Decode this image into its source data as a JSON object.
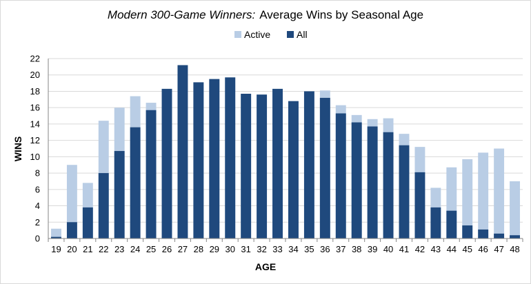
{
  "chart_data": {
    "type": "bar",
    "title_italic": "Modern 300-Game Winners:",
    "title_rest": "Average Wins by Seasonal Age",
    "xlabel": "AGE",
    "ylabel": "WINS",
    "ylim": [
      0,
      22
    ],
    "yticks": [
      0,
      2,
      4,
      6,
      8,
      10,
      12,
      14,
      16,
      18,
      20,
      22
    ],
    "grid": true,
    "legend_position": "top",
    "stacked": true,
    "categories": [
      "19",
      "20",
      "21",
      "22",
      "23",
      "24",
      "25",
      "26",
      "27",
      "28",
      "29",
      "30",
      "31",
      "32",
      "33",
      "34",
      "35",
      "36",
      "37",
      "38",
      "39",
      "40",
      "41",
      "42",
      "43",
      "44",
      "45",
      "46",
      "47",
      "48"
    ],
    "series": [
      {
        "name": "All",
        "color": "#1f497d",
        "values": [
          0.2,
          2.0,
          3.8,
          8.0,
          10.7,
          13.6,
          15.7,
          18.3,
          21.2,
          19.1,
          19.5,
          19.7,
          17.7,
          17.6,
          18.3,
          16.8,
          18.0,
          17.2,
          15.3,
          14.2,
          13.7,
          13.0,
          11.4,
          8.1,
          3.8,
          3.4,
          1.6,
          1.1,
          0.6,
          0.4
        ]
      },
      {
        "name": "Active",
        "color": "#b9cde5",
        "values": [
          1.2,
          9.0,
          6.8,
          14.4,
          16.0,
          17.4,
          16.6,
          18.3,
          21.2,
          19.1,
          19.5,
          19.7,
          17.7,
          17.6,
          18.3,
          16.8,
          18.0,
          18.1,
          16.3,
          15.1,
          14.6,
          14.7,
          12.8,
          11.2,
          6.2,
          8.7,
          9.7,
          10.5,
          11.0,
          7.0
        ]
      }
    ],
    "legend": [
      {
        "name": "Active",
        "color": "#b9cde5"
      },
      {
        "name": "All",
        "color": "#1f497d"
      }
    ]
  }
}
